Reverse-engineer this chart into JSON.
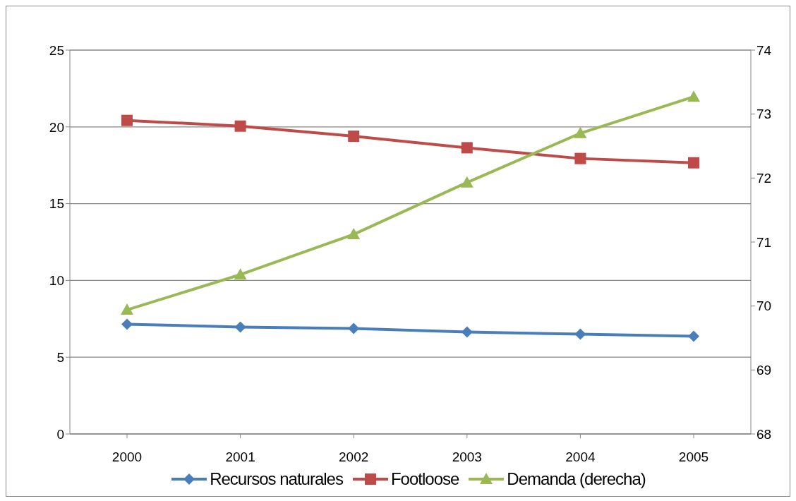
{
  "chart_data": {
    "type": "line",
    "categories": [
      "2000",
      "2001",
      "2002",
      "2003",
      "2004",
      "2005"
    ],
    "series": [
      {
        "name": "Recursos naturales",
        "color": "#4a7ebb",
        "marker": "diamond",
        "values": [
          7.15,
          6.96,
          6.87,
          6.64,
          6.5,
          6.36
        ]
      },
      {
        "name": "Footloose",
        "color": "#be4b48",
        "marker": "square",
        "values": [
          20.42,
          20.05,
          19.39,
          18.64,
          17.94,
          17.66
        ]
      },
      {
        "name": "Demanda (derecha)",
        "color": "#98b954",
        "marker": "triangle",
        "axis": "y2",
        "values": [
          69.94,
          70.49,
          71.12,
          71.93,
          72.7,
          73.27
        ]
      }
    ],
    "ylim": [
      0,
      25
    ],
    "yticks": [
      0,
      5,
      10,
      15,
      20,
      25
    ],
    "y2lim": [
      68,
      74
    ],
    "y2ticks": [
      68,
      69,
      70,
      71,
      72,
      73,
      74
    ],
    "grid": "y",
    "legend": "bottom"
  }
}
